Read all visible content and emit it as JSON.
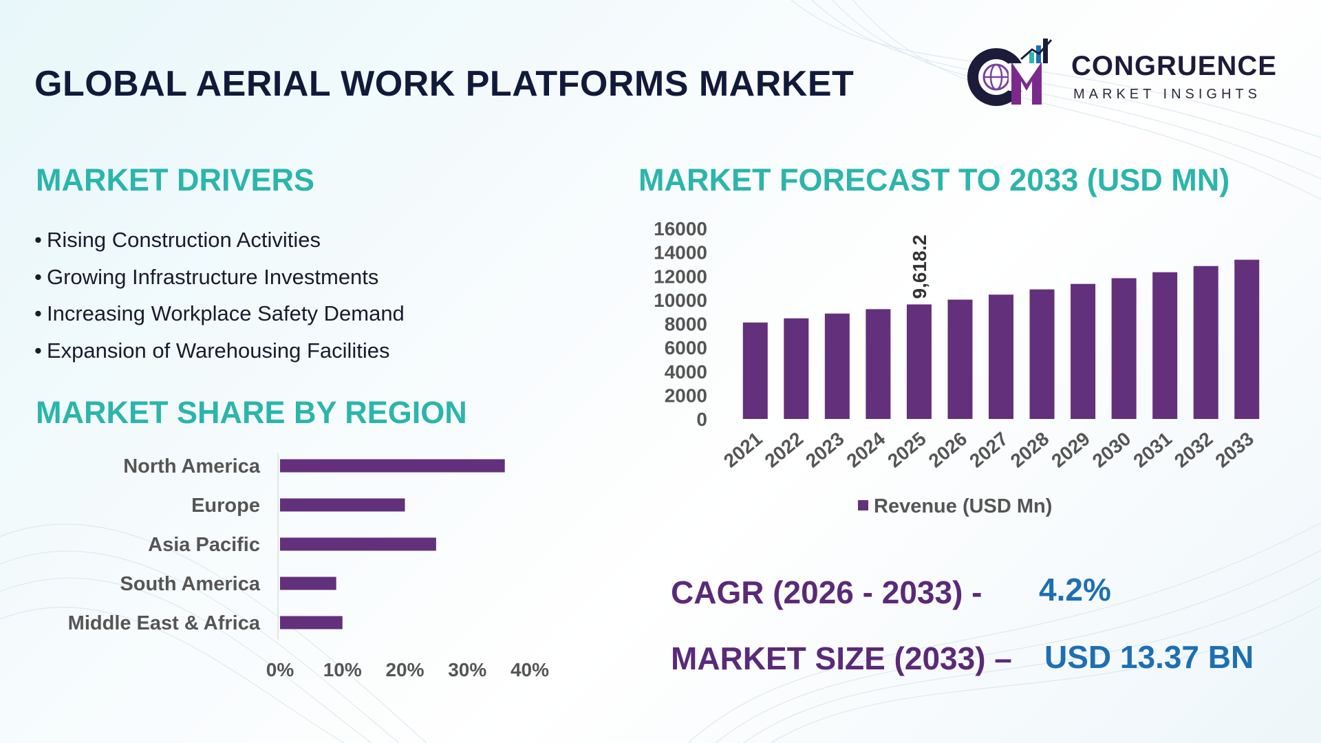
{
  "header": {
    "title": "GLOBAL AERIAL WORK PLATFORMS MARKET",
    "logo_word": "CONGRUENCE",
    "logo_sub": "MARKET INSIGHTS"
  },
  "drivers": {
    "title": "MARKET DRIVERS",
    "bullet": "•",
    "items": [
      "Rising Construction Activities",
      "Growing Infrastructure Investments",
      "Increasing Workplace Safety Demand",
      "Expansion of Warehousing Facilities"
    ]
  },
  "region": {
    "title": "MARKET SHARE BY REGION"
  },
  "forecast": {
    "title": "MARKET FORECAST TO 2033 (USD MN)"
  },
  "stats": {
    "cagr_label": "CAGR (2026 - 2033) -",
    "cagr_value": "4.2%",
    "size_label": "MARKET SIZE (2033) –",
    "size_value": "USD 13.37 BN"
  },
  "colors": {
    "bar": "#63307c",
    "teal": "#2bb5ac",
    "purple_text": "#5a2a78",
    "blue_text": "#1e6fb3"
  },
  "chart_data": [
    {
      "type": "bar",
      "orientation": "vertical",
      "categories": [
        "2021",
        "2022",
        "2023",
        "2024",
        "2025",
        "2026",
        "2027",
        "2028",
        "2029",
        "2030",
        "2031",
        "2032",
        "2033"
      ],
      "series": [
        {
          "name": "Revenue (USD Mn)",
          "values": [
            8100,
            8450,
            8850,
            9220,
            9618.2,
            10020,
            10440,
            10880,
            11340,
            11820,
            12320,
            12840,
            13370
          ]
        }
      ],
      "data_labels": [
        {
          "index": 4,
          "text": "9,618.2"
        }
      ],
      "yticks": [
        "0",
        "2000",
        "4000",
        "6000",
        "8000",
        "10000",
        "12000",
        "14000",
        "16000"
      ],
      "ylim": [
        0,
        16000
      ],
      "legend": "bottom",
      "grid": false
    },
    {
      "type": "bar",
      "orientation": "horizontal",
      "categories": [
        "North America",
        "Europe",
        "Asia Pacific",
        "South America",
        "Middle East & Africa"
      ],
      "values": [
        36,
        20,
        25,
        9,
        10
      ],
      "xticks": [
        "0%",
        "10%",
        "20%",
        "30%",
        "40%"
      ],
      "xlim": [
        0,
        40
      ],
      "legend": "none",
      "grid": false
    }
  ]
}
